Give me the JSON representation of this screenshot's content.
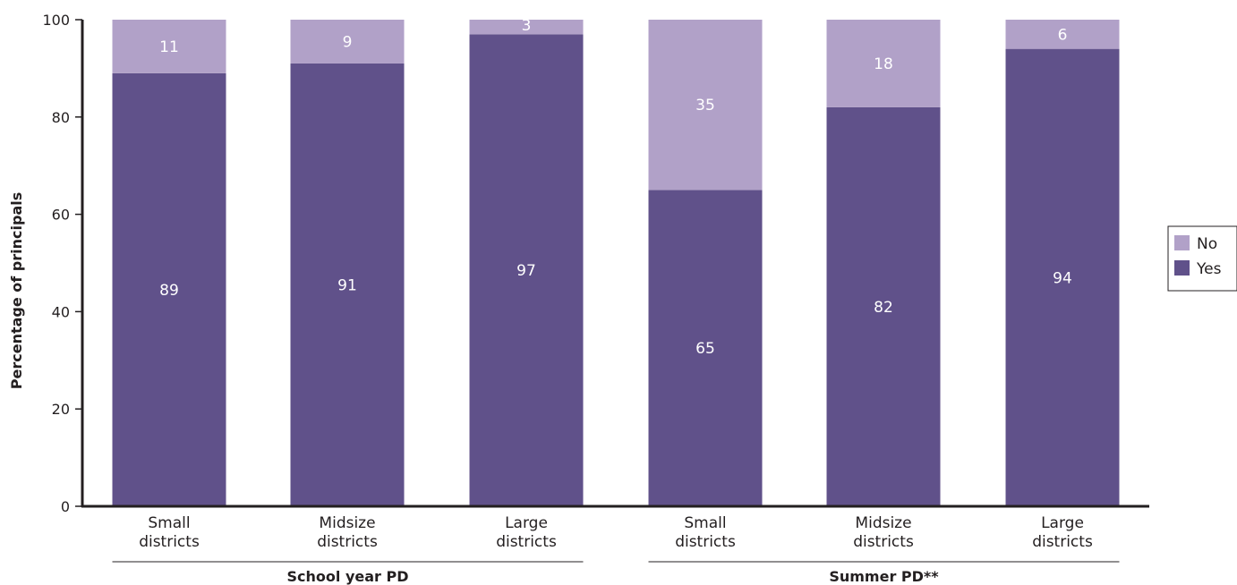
{
  "chart_data": {
    "type": "bar",
    "stacked": true,
    "ylabel": "Percentage of principals",
    "ylim": [
      0,
      100
    ],
    "yticks": [
      0,
      20,
      40,
      60,
      80,
      100
    ],
    "categories": [
      "Small districts",
      "Midsize districts",
      "Large districts",
      "Small districts",
      "Midsize districts",
      "Large districts"
    ],
    "category_lines": [
      [
        "Small",
        "districts"
      ],
      [
        "Midsize",
        "districts"
      ],
      [
        "Large",
        "districts"
      ],
      [
        "Small",
        "districts"
      ],
      [
        "Midsize",
        "districts"
      ],
      [
        "Large",
        "districts"
      ]
    ],
    "groups": [
      {
        "label": "School year PD",
        "categories": [
          0,
          1,
          2
        ]
      },
      {
        "label": "Summer PD**",
        "categories": [
          3,
          4,
          5
        ]
      }
    ],
    "series": [
      {
        "name": "Yes",
        "color": "#60518a",
        "values": [
          89,
          91,
          97,
          65,
          82,
          94
        ]
      },
      {
        "name": "No",
        "color": "#b1a1c8",
        "values": [
          11,
          9,
          3,
          35,
          18,
          6
        ]
      }
    ],
    "legend": {
      "position": "right",
      "entries": [
        "No",
        "Yes"
      ]
    },
    "grid": false
  }
}
